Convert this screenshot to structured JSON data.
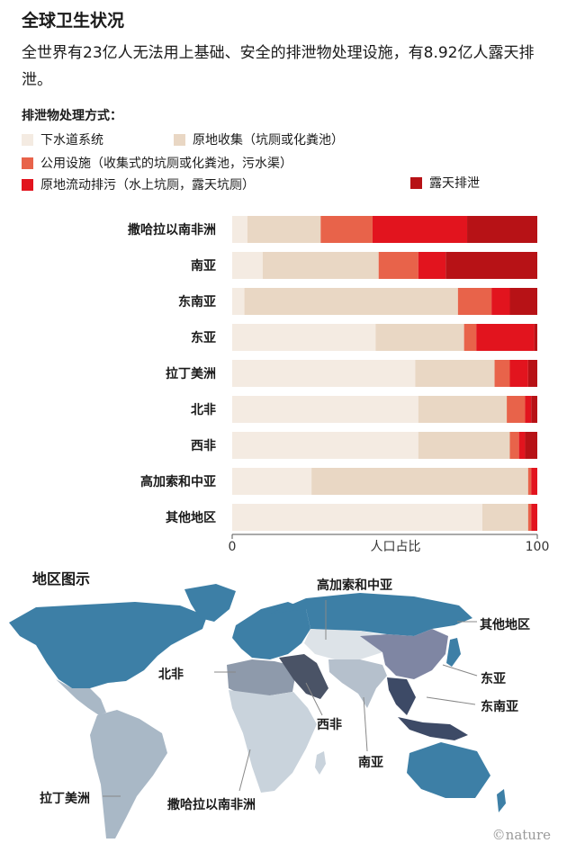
{
  "header": {
    "title": "全球卫生状况",
    "subtitle": "全世界有23亿人无法用上基础、安全的排泄物处理设施，有8.92亿人露天排泄。"
  },
  "legend": {
    "title": "排泄物处理方式：",
    "items": [
      {
        "label": "下水道系统",
        "color": "#f4ebe2"
      },
      {
        "label": "原地收集（坑厕或化粪池）",
        "color": "#e9d7c4"
      },
      {
        "label": "公用设施（收集式的坑厕或化粪池，污水渠）",
        "color": "#e8634a"
      },
      {
        "label": "原地流动排污（水上坑厕，露天坑厕）",
        "color": "#e2141e"
      },
      {
        "label": "露天排泄",
        "color": "#b71216"
      }
    ]
  },
  "chart_data": {
    "type": "bar",
    "orientation": "horizontal",
    "stacked": true,
    "xlabel": "人口占比",
    "xlim": [
      0,
      100
    ],
    "xticks": [
      "0",
      "100"
    ],
    "categories": [
      "撒哈拉以南非洲",
      "南亚",
      "东南亚",
      "东亚",
      "拉丁美洲",
      "北非",
      "西非",
      "高加索和中亚",
      "其他地区"
    ],
    "series": [
      {
        "name": "下水道系统",
        "color": "#f4ebe2",
        "values": [
          5,
          10,
          4,
          47,
          60,
          61,
          61,
          26,
          82
        ]
      },
      {
        "name": "原地收集（坑厕或化粪池）",
        "color": "#e9d7c4",
        "values": [
          24,
          38,
          70,
          29,
          26,
          29,
          30,
          71,
          15
        ]
      },
      {
        "name": "公用设施（收集式的坑厕或化粪池，污水渠）",
        "color": "#e8634a",
        "values": [
          17,
          13,
          11,
          4,
          5,
          6,
          3,
          1,
          1
        ]
      },
      {
        "name": "原地流动排污（水上坑厕，露天坑厕）",
        "color": "#e2141e",
        "values": [
          31,
          9,
          6,
          19,
          6,
          2,
          2,
          2,
          2
        ]
      },
      {
        "name": "露天排泄",
        "color": "#b71216",
        "values": [
          23,
          30,
          9,
          1,
          3,
          2,
          4,
          0,
          0
        ]
      }
    ]
  },
  "map": {
    "title": "地区图示",
    "labels": {
      "caucasus": "高加索和中亚",
      "other": "其他地区",
      "north_africa": "北非",
      "east_asia": "东亚",
      "west_asia": "西非",
      "southeast_asia": "东南亚",
      "south_asia": "南亚",
      "latin_america": "拉丁美洲",
      "subsaharan": "撒哈拉以南非洲"
    },
    "colors": {
      "other": "#3d7fa6",
      "latin_america": "#a9b8c6",
      "north_africa": "#8e9aab",
      "west_asia": "#4a5366",
      "subsaharan": "#c9d3dc",
      "caucasus": "#dde3e8",
      "south_asia": "#b5c0cc",
      "east_asia": "#7f86a3",
      "southeast_asia": "#3d4a66"
    }
  },
  "credit": "©nature"
}
